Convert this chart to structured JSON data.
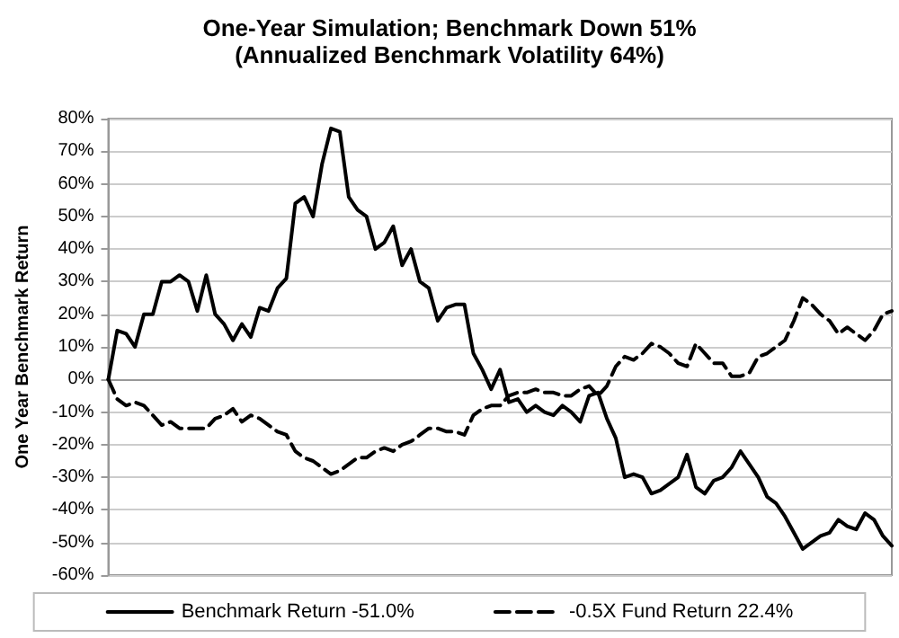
{
  "chart_data": {
    "type": "line",
    "title": "One-Year Simulation; Benchmark Down 51%",
    "subtitle": "(Annualized Benchmark Volatility 64%)",
    "ylabel": "One Year Benchmark Return",
    "categories": [
      null,
      null,
      null,
      null,
      null,
      null,
      null,
      null,
      null,
      null,
      null,
      null,
      null,
      null,
      null,
      null,
      null,
      null,
      null,
      null,
      null,
      null,
      null,
      null,
      null,
      null,
      null,
      null,
      null,
      null,
      null,
      null,
      null,
      null,
      null,
      null,
      null,
      null,
      null,
      null,
      null,
      null,
      null,
      null,
      null,
      null,
      null,
      null,
      null,
      null,
      null,
      null,
      null,
      null,
      null,
      null,
      null,
      null,
      null,
      null,
      null,
      null,
      null,
      null,
      null,
      null,
      null,
      null,
      null,
      null,
      null,
      null,
      null,
      null,
      null,
      null,
      null,
      null,
      null,
      null,
      null,
      null,
      null,
      null,
      null,
      null,
      null,
      null,
      null
    ],
    "series": [
      {
        "name": "Benchmark Return -51.0%",
        "color": "#000000",
        "line_style": "solid",
        "values": [
          0,
          15,
          14,
          10,
          20,
          20,
          30,
          30,
          32,
          30,
          21,
          32,
          20,
          17,
          12,
          17,
          13,
          22,
          21,
          28,
          31,
          54,
          56,
          50,
          66,
          77,
          76,
          56,
          52,
          50,
          40,
          42,
          47,
          35,
          40,
          30,
          28,
          18,
          22,
          23,
          23,
          8,
          3,
          -3,
          3,
          -7,
          -6,
          -10,
          -8,
          -10,
          -11,
          -8,
          -10,
          -13,
          -5,
          -4,
          -12,
          -18,
          -30,
          -29,
          -30,
          -35,
          -34,
          -32,
          -30,
          -23,
          -33,
          -35,
          -31,
          -30,
          -27,
          -22,
          -26,
          -30,
          -36,
          -38,
          -42,
          -47,
          -52,
          -50,
          -48,
          -47,
          -43,
          -45,
          -46,
          -41,
          -43,
          -48,
          -51
        ]
      },
      {
        "name": "-0.5X Fund Return 22.4%",
        "color": "#000000",
        "line_style": "dashed",
        "values": [
          0,
          -6,
          -8,
          -7,
          -8,
          -11,
          -14,
          -13,
          -15,
          -15,
          -15,
          -15,
          -12,
          -11,
          -9,
          -13,
          -11,
          -12,
          -14,
          -16,
          -17,
          -22,
          -24,
          -25,
          -27,
          -29,
          -28,
          -26,
          -24,
          -24,
          -22,
          -21,
          -22,
          -20,
          -19,
          -17,
          -15,
          -15,
          -16,
          -16,
          -17,
          -11,
          -9,
          -8,
          -8,
          -5,
          -4,
          -4,
          -3,
          -4,
          -4,
          -5,
          -5,
          -3,
          -2,
          -5,
          -2,
          4,
          7,
          6,
          8,
          11,
          10,
          8,
          5,
          4,
          11,
          8,
          5,
          5,
          1,
          1,
          2,
          7,
          8,
          10,
          12,
          18,
          25,
          23,
          20,
          18,
          14,
          16,
          14,
          12,
          15,
          20,
          21
        ]
      }
    ],
    "ylim": [
      -60,
      80
    ],
    "yticks": [
      {
        "value": -60,
        "label": "-60%"
      },
      {
        "value": -50,
        "label": "-50%"
      },
      {
        "value": -40,
        "label": "-40%"
      },
      {
        "value": -30,
        "label": "-30%"
      },
      {
        "value": -20,
        "label": "-20%"
      },
      {
        "value": -10,
        "label": "-10%"
      },
      {
        "value": 0,
        "label": "0%"
      },
      {
        "value": 10,
        "label": "10%"
      },
      {
        "value": 20,
        "label": "20%"
      },
      {
        "value": 30,
        "label": "30%"
      },
      {
        "value": 40,
        "label": "40%"
      },
      {
        "value": 50,
        "label": "50%"
      },
      {
        "value": 60,
        "label": "60%"
      },
      {
        "value": 70,
        "label": "70%"
      },
      {
        "value": 80,
        "label": "80%"
      }
    ],
    "grid": "y",
    "legend": "bottom",
    "tick_labels": "y"
  }
}
